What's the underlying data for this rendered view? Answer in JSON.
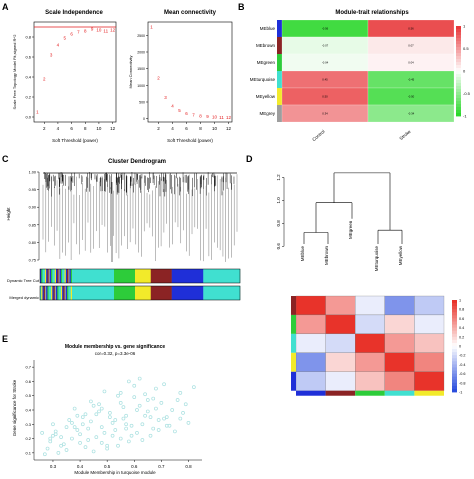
{
  "panel_labels": [
    "A",
    "B",
    "C",
    "D",
    "E"
  ],
  "chart_data": [
    {
      "id": "A1",
      "type": "scatter",
      "title": "Scale Independence",
      "xlabel": "Soft Threshold (power)",
      "ylabel": "Scale Free Topology Model Fit,signed R^2",
      "x": [
        1,
        2,
        3,
        4,
        5,
        6,
        7,
        8,
        9,
        10,
        11,
        12
      ],
      "y": [
        0.05,
        0.38,
        0.62,
        0.72,
        0.79,
        0.83,
        0.85,
        0.86,
        0.88,
        0.87,
        0.86,
        0.87
      ],
      "labels": [
        "1",
        "2",
        "3",
        "4",
        "5",
        "6",
        "7",
        "8",
        "9",
        "10",
        "11",
        "12"
      ],
      "xticks": [
        "2",
        "4",
        "6",
        "8",
        "10",
        "12"
      ],
      "yticks": [
        "0.0",
        "0.2",
        "0.4",
        "0.6",
        "0.8"
      ],
      "xlim": [
        1,
        12
      ],
      "ylim": [
        0,
        0.9
      ],
      "hline": 0.9,
      "color": "#e31a1c"
    },
    {
      "id": "A2",
      "type": "scatter",
      "title": "Mean connectivity",
      "xlabel": "Soft Threshold (power)",
      "ylabel": "Mean Connectivity",
      "x": [
        1,
        2,
        3,
        4,
        5,
        6,
        7,
        8,
        9,
        10,
        11,
        12
      ],
      "y": [
        2750,
        1220,
        640,
        380,
        240,
        160,
        110,
        80,
        60,
        48,
        38,
        30
      ],
      "labels": [
        "1",
        "2",
        "3",
        "4",
        "5",
        "6",
        "7",
        "8",
        "9",
        "10",
        "11",
        "12"
      ],
      "xticks": [
        "2",
        "4",
        "6",
        "8",
        "10",
        "12"
      ],
      "yticks": [
        "0",
        "500",
        "1000",
        "1500",
        "2000",
        "2500"
      ],
      "xlim": [
        1,
        12
      ],
      "ylim": [
        0,
        2900
      ],
      "color": "#e31a1c"
    },
    {
      "id": "B",
      "type": "heatmap",
      "title": "Module-trait relationships",
      "rows": [
        "MEblue",
        "MEbrown",
        "MEgreen",
        "MEturquoise",
        "MEyellow",
        "MEgrey"
      ],
      "row_colors": [
        "#1f2fd8",
        "#8b2324",
        "#2dcc3a",
        "#40e0d0",
        "#f2ea2a",
        "#9e9e9e"
      ],
      "columns": [
        "Control",
        "Stroke"
      ],
      "values": [
        [
          -0.56,
          0.56
        ],
        [
          -0.07,
          0.07
        ],
        [
          -0.04,
          0.04
        ],
        [
          0.45,
          -0.45
        ],
        [
          0.5,
          -0.5
        ],
        [
          0.34,
          -0.34
        ]
      ],
      "colorbar_ticks": [
        "1",
        "0.5",
        "0",
        "-0.5",
        "-1"
      ]
    },
    {
      "id": "C",
      "type": "dendrogram",
      "title": "Cluster Dendrogram",
      "ylabel": "Height",
      "yticks": [
        "0.75",
        "0.80",
        "0.85",
        "0.90",
        "0.95",
        "1.00"
      ],
      "track_labels": [
        "Dynamic Tree Cut",
        "Merged dynamic"
      ],
      "modules": [
        {
          "color": "#40e0d0",
          "weight": 8
        },
        {
          "color": "#2dcc3a",
          "weight": 4
        },
        {
          "color": "#f2ea2a",
          "weight": 3
        },
        {
          "color": "#8b2324",
          "weight": 4
        },
        {
          "color": "#1f2fd8",
          "weight": 6
        },
        {
          "color": "#40e0d0",
          "weight": 7
        }
      ]
    },
    {
      "id": "D",
      "type": "dendrogram",
      "leaves": [
        "MEblue",
        "MEbrown",
        "MEgreen",
        "MEturquoise",
        "MEyellow"
      ],
      "yticks": [
        "0.6",
        "0.8",
        "1.0",
        "1.2"
      ],
      "corr_matrix": [
        [
          1.0,
          0.5,
          -0.1,
          -0.6,
          -0.3
        ],
        [
          0.5,
          1.0,
          -0.2,
          0.2,
          -0.1
        ],
        [
          -0.1,
          -0.2,
          1.0,
          0.5,
          0.3
        ],
        [
          -0.6,
          0.2,
          0.5,
          1.0,
          0.6
        ],
        [
          -0.3,
          -0.1,
          0.3,
          0.6,
          1.0
        ]
      ],
      "matrix_colors": [
        "#8b2324",
        "#2dcc3a",
        "#40e0d0",
        "#f2ea2a",
        "#1f2fd8"
      ],
      "bottom_colors": [
        "#1f2fd8",
        "#8b2324",
        "#2dcc3a",
        "#40e0d0",
        "#f2ea2a"
      ],
      "colorbar_ticks": [
        "1",
        "0.8",
        "0.6",
        "0.4",
        "0.2",
        "0",
        "-0.2",
        "-0.4",
        "-0.6",
        "-0.8",
        "-1"
      ]
    },
    {
      "id": "E",
      "type": "scatter",
      "title": "Module membership vs. gene significance",
      "subtitle": "cor=0.32, p=3.3e-06",
      "xlabel": "Module Membership in turquoise module",
      "ylabel": "Gene significance for Stroke",
      "xticks": [
        "0.3",
        "0.4",
        "0.5",
        "0.6",
        "0.7",
        "0.8"
      ],
      "yticks": [
        "0.1",
        "0.2",
        "0.3",
        "0.4",
        "0.5",
        "0.6",
        "0.7"
      ],
      "xlim": [
        0.23,
        0.85
      ],
      "ylim": [
        0.05,
        0.75
      ],
      "color": "#a9e0e0",
      "x": [
        0.62,
        0.77,
        0.48,
        0.38,
        0.55,
        0.66,
        0.29,
        0.44,
        0.71,
        0.52,
        0.35,
        0.6,
        0.8,
        0.46,
        0.57,
        0.31,
        0.68,
        0.5,
        0.41,
        0.74,
        0.63,
        0.27,
        0.54,
        0.39,
        0.69,
        0.47,
        0.58,
        0.33,
        0.65,
        0.76,
        0.42,
        0.53,
        0.3,
        0.61,
        0.49,
        0.72,
        0.37,
        0.56,
        0.45,
        0.67,
        0.82,
        0.34,
        0.59,
        0.51,
        0.4,
        0.7,
        0.28,
        0.64,
        0.43,
        0.55,
        0.78,
        0.36,
        0.62,
        0.48,
        0.73,
        0.32,
        0.57,
        0.66,
        0.44,
        0.52,
        0.26,
        0.6,
        0.39,
        0.71,
        0.5,
        0.35,
        0.68,
        0.46,
        0.58,
        0.79,
        0.41,
        0.54,
        0.3,
        0.63,
        0.47,
        0.75,
        0.38,
        0.56,
        0.65,
        0.43,
        0.53,
        0.33,
        0.69,
        0.49,
        0.61,
        0.29,
        0.45,
        0.72,
        0.51,
        0.37,
        0.59,
        0.42,
        0.67,
        0.55,
        0.31,
        0.64,
        0.48,
        0.77,
        0.4,
        0.57
      ],
      "y": [
        0.62,
        0.52,
        0.41,
        0.28,
        0.45,
        0.35,
        0.18,
        0.32,
        0.58,
        0.22,
        0.12,
        0.49,
        0.31,
        0.37,
        0.27,
        0.25,
        0.55,
        0.15,
        0.3,
        0.4,
        0.19,
        0.09,
        0.5,
        0.36,
        0.26,
        0.44,
        0.6,
        0.21,
        0.39,
        0.47,
        0.14,
        0.33,
        0.3,
        0.24,
        0.53,
        0.35,
        0.2,
        0.42,
        0.11,
        0.48,
        0.56,
        0.16,
        0.29,
        0.38,
        0.23,
        0.45,
        0.13,
        0.51,
        0.27,
        0.2,
        0.38,
        0.33,
        0.43,
        0.17,
        0.29,
        0.1,
        0.36,
        0.22,
        0.46,
        0.31,
        0.24,
        0.57,
        0.26,
        0.34,
        0.13,
        0.28,
        0.41,
        0.21,
        0.18,
        0.44,
        0.35,
        0.15,
        0.22,
        0.3,
        0.39,
        0.25,
        0.41,
        0.34,
        0.47,
        0.19,
        0.26,
        0.15,
        0.33,
        0.24,
        0.4,
        0.2,
        0.43,
        0.29,
        0.35,
        0.31,
        0.22,
        0.37,
        0.27,
        0.52,
        0.23,
        0.36,
        0.28,
        0.34,
        0.17,
        0.3
      ]
    }
  ]
}
